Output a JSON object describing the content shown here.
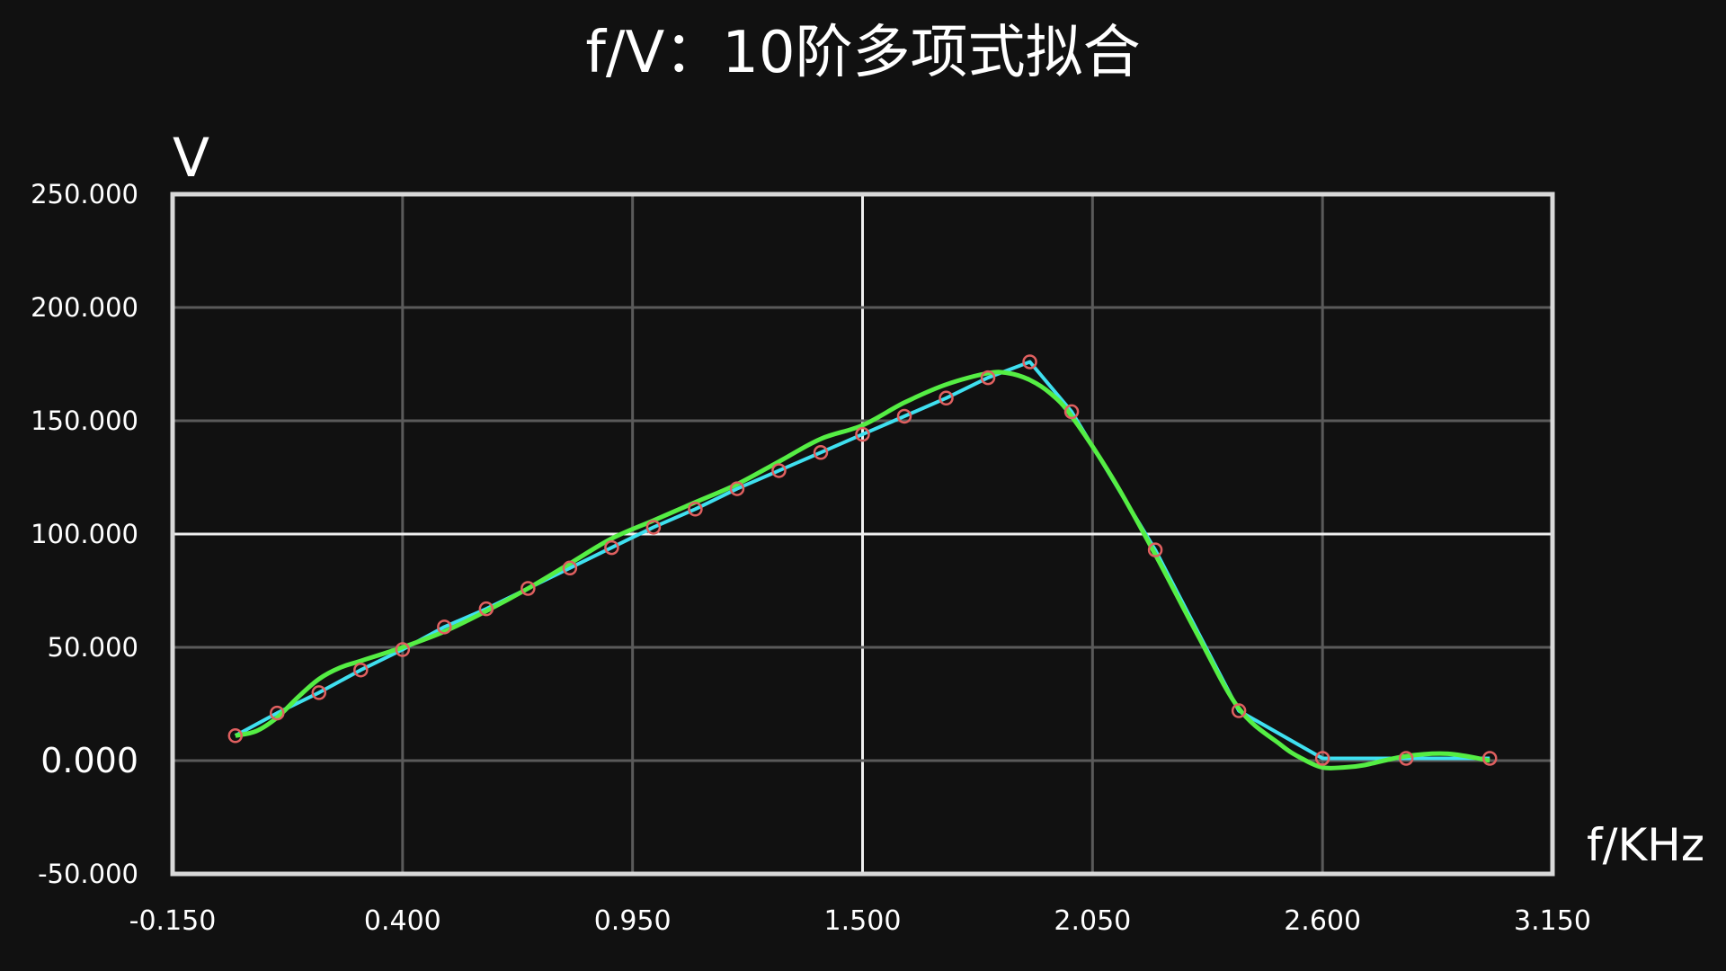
{
  "colors": {
    "background": "#111111",
    "frame": "#d9d9d9",
    "grid": "#5a5a5a",
    "grid_major": "#f0f0f0",
    "raw_line": "#3fe0f0",
    "fit_line": "#55ee44",
    "marker": "#e06060",
    "text": "#ffffff"
  },
  "chart_data": {
    "type": "line",
    "title": "f/V：10阶多项式拟合",
    "xlabel": "f/KHz",
    "ylabel": "V",
    "xlim": [
      -0.15,
      3.15
    ],
    "ylim": [
      -50,
      250
    ],
    "x_ticks": [
      -0.15,
      0.4,
      0.95,
      1.5,
      2.05,
      2.6,
      3.15
    ],
    "x_tick_labels": [
      "-0.150",
      "0.400",
      "0.950",
      "1.500",
      "2.050",
      "2.600",
      "3.150"
    ],
    "y_ticks": [
      -50,
      0,
      50,
      100,
      150,
      200,
      250
    ],
    "y_tick_labels": [
      "-50.000",
      "0.000",
      "50.000",
      "100.000",
      "150.000",
      "200.000",
      "250.000"
    ],
    "major_x": 1.5,
    "major_y": 100,
    "grid": true,
    "series": [
      {
        "x": [
          0.0,
          0.1,
          0.2,
          0.3,
          0.4,
          0.5,
          0.6,
          0.7,
          0.8,
          0.9,
          1.0,
          1.1,
          1.2,
          1.3,
          1.4,
          1.5,
          1.6,
          1.7,
          1.8,
          1.9,
          2.0,
          2.2,
          2.4,
          2.6,
          2.8,
          3.0
        ],
        "values": [
          11,
          21,
          30,
          40,
          49,
          59,
          67,
          76,
          85,
          94,
          103,
          111,
          120,
          128,
          136,
          144,
          152,
          160,
          169,
          176,
          154,
          93,
          22,
          1,
          1,
          1
        ]
      },
      {
        "x": [
          0.0,
          0.05,
          0.1,
          0.15,
          0.2,
          0.25,
          0.3,
          0.4,
          0.5,
          0.6,
          0.7,
          0.8,
          0.9,
          1.0,
          1.1,
          1.2,
          1.3,
          1.4,
          1.5,
          1.6,
          1.7,
          1.8,
          1.85,
          1.9,
          1.95,
          2.0,
          2.1,
          2.2,
          2.3,
          2.4,
          2.5,
          2.55,
          2.6,
          2.65,
          2.7,
          2.8,
          2.9,
          3.0
        ],
        "values": [
          11,
          13,
          19,
          28,
          36,
          41,
          44,
          50,
          57,
          66,
          76,
          87,
          98,
          106,
          114,
          122,
          132,
          142,
          148,
          158,
          166,
          171,
          171,
          168,
          162,
          152,
          124,
          91,
          56,
          23,
          7,
          1,
          -3,
          -3,
          -2,
          2,
          3,
          0
        ]
      }
    ]
  }
}
